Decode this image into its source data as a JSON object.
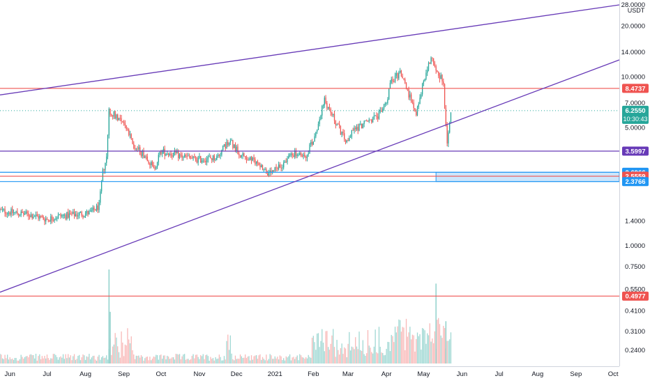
{
  "chart_data": {
    "type": "candlestick",
    "currency": "USDT",
    "y_scale": "log",
    "ylim": [
      0.21,
      27.0
    ],
    "xlim": [
      "2020-05-24",
      "2021-10-06"
    ],
    "grid": false,
    "x_ticks": [
      {
        "label": "Jun",
        "date": "2020-06-01"
      },
      {
        "label": "Jul",
        "date": "2020-07-01"
      },
      {
        "label": "Aug",
        "date": "2020-08-01"
      },
      {
        "label": "Sep",
        "date": "2020-09-01"
      },
      {
        "label": "Oct",
        "date": "2020-10-01"
      },
      {
        "label": "Nov",
        "date": "2020-11-01"
      },
      {
        "label": "Dec",
        "date": "2020-12-01"
      },
      {
        "label": "2021",
        "date": "2021-01-01"
      },
      {
        "label": "Feb",
        "date": "2021-02-01"
      },
      {
        "label": "Mar",
        "date": "2021-03-01"
      },
      {
        "label": "Apr",
        "date": "2021-04-01"
      },
      {
        "label": "May",
        "date": "2021-05-01"
      },
      {
        "label": "Jun",
        "date": "2021-06-01"
      },
      {
        "label": "Jul",
        "date": "2021-07-01"
      },
      {
        "label": "Aug",
        "date": "2021-08-01"
      },
      {
        "label": "Sep",
        "date": "2021-09-01"
      },
      {
        "label": "Oct",
        "date": "2021-10-01"
      }
    ],
    "y_ticks": [
      {
        "label": "28.0000",
        "value": 28.0
      },
      {
        "label": "20.0000",
        "value": 20.0
      },
      {
        "label": "14.0000",
        "value": 14.0
      },
      {
        "label": "10.0000",
        "value": 10.0
      },
      {
        "label": "7.0000",
        "value": 7.0
      },
      {
        "label": "5.0000",
        "value": 5.0
      },
      {
        "label": "1.4000",
        "value": 1.4
      },
      {
        "label": "1.0000",
        "value": 1.0
      },
      {
        "label": "0.7500",
        "value": 0.75
      },
      {
        "label": "0.5500",
        "value": 0.55
      },
      {
        "label": "0.4100",
        "value": 0.41
      },
      {
        "label": "0.3100",
        "value": 0.31
      },
      {
        "label": "0.2400",
        "value": 0.24
      }
    ],
    "price_labels": [
      {
        "label": "8.4737",
        "value": 8.4737,
        "color": "#ef5350"
      },
      {
        "label": "6.2550",
        "value": 6.255,
        "color": "#26a69a",
        "countdown": "10:30:43"
      },
      {
        "label": "3.5997",
        "value": 3.5997,
        "color": "#673ab7"
      },
      {
        "label": "2.6966",
        "value": 2.6966,
        "color": "#2196f3"
      },
      {
        "label": "2.5559",
        "value": 2.5559,
        "color": "#ef5350"
      },
      {
        "label": "2.3766",
        "value": 2.3766,
        "color": "#2196f3"
      },
      {
        "label": "0.4977",
        "value": 0.4977,
        "color": "#ef5350"
      }
    ],
    "horizontal_lines": [
      {
        "value": 8.4737,
        "color": "#ef5350"
      },
      {
        "value": 3.5997,
        "color": "#673ab7"
      },
      {
        "value": 2.6966,
        "color": "#2196f3"
      },
      {
        "value": 2.5559,
        "color": "#ef5350"
      },
      {
        "value": 2.3766,
        "color": "#2196f3"
      },
      {
        "value": 0.4977,
        "color": "#ef5350"
      }
    ],
    "last_price_line": {
      "value": 6.255,
      "color": "#26a69a"
    },
    "trendlines": [
      {
        "color": "#673ab7",
        "from": {
          "date": "2020-05-24",
          "value": 7.75
        },
        "to": {
          "date": "2021-10-06",
          "value": 26.5
        }
      },
      {
        "color": "#673ab7",
        "from": {
          "date": "2020-05-24",
          "value": 0.525
        },
        "to": {
          "date": "2021-10-06",
          "value": 12.5
        }
      }
    ],
    "zone": {
      "from_date": "2021-05-11",
      "to_date": "2021-10-06",
      "low": 2.3766,
      "high": 2.6966,
      "color": "#2196f3"
    },
    "candle_interval": "1D",
    "price_path": [
      [
        "2020-05-24",
        1.6
      ],
      [
        "2020-06-05",
        1.55
      ],
      [
        "2020-06-20",
        1.5
      ],
      [
        "2020-07-01",
        1.42
      ],
      [
        "2020-07-10",
        1.48
      ],
      [
        "2020-07-25",
        1.52
      ],
      [
        "2020-08-05",
        1.55
      ],
      [
        "2020-08-12",
        1.7
      ],
      [
        "2020-08-15",
        2.7
      ],
      [
        "2020-08-18",
        3.3
      ],
      [
        "2020-08-20",
        6.2
      ],
      [
        "2020-08-25",
        5.9
      ],
      [
        "2020-08-31",
        5.5
      ],
      [
        "2020-09-05",
        4.5
      ],
      [
        "2020-09-10",
        3.8
      ],
      [
        "2020-09-20",
        3.3
      ],
      [
        "2020-09-25",
        2.8
      ],
      [
        "2020-10-01",
        3.6
      ],
      [
        "2020-10-15",
        3.4
      ],
      [
        "2020-10-30",
        3.2
      ],
      [
        "2020-11-15",
        3.3
      ],
      [
        "2020-11-25",
        4.2
      ],
      [
        "2020-12-05",
        3.4
      ],
      [
        "2020-12-20",
        3.0
      ],
      [
        "2020-12-27",
        2.6
      ],
      [
        "2021-01-05",
        2.9
      ],
      [
        "2021-01-15",
        3.5
      ],
      [
        "2021-01-25",
        3.3
      ],
      [
        "2021-02-01",
        4.2
      ],
      [
        "2021-02-10",
        7.2
      ],
      [
        "2021-02-20",
        5.2
      ],
      [
        "2021-02-28",
        4.0
      ],
      [
        "2021-03-05",
        4.8
      ],
      [
        "2021-03-15",
        5.3
      ],
      [
        "2021-03-25",
        5.8
      ],
      [
        "2021-04-01",
        7.0
      ],
      [
        "2021-04-05",
        9.5
      ],
      [
        "2021-04-12",
        10.5
      ],
      [
        "2021-04-20",
        7.5
      ],
      [
        "2021-04-25",
        6.0
      ],
      [
        "2021-05-01",
        9.5
      ],
      [
        "2021-05-07",
        13.0
      ],
      [
        "2021-05-12",
        11.0
      ],
      [
        "2021-05-17",
        9.0
      ],
      [
        "2021-05-19",
        5.0
      ],
      [
        "2021-05-20",
        4.2
      ],
      [
        "2021-05-23",
        6.25
      ]
    ],
    "volume_spikes": [
      {
        "date": "2020-08-20",
        "level": 1.0
      },
      {
        "date": "2020-08-21",
        "level": 0.55
      },
      {
        "date": "2021-05-11",
        "level": 0.85
      },
      {
        "date": "2021-05-19",
        "level": 0.45
      }
    ],
    "colors": {
      "up": "#26a69a",
      "down": "#ef5350",
      "up_volume": "#80cbc4",
      "down_volume": "#f5a2a0",
      "axis_text": "#131722",
      "axis_line": "#cfd3dc"
    }
  }
}
